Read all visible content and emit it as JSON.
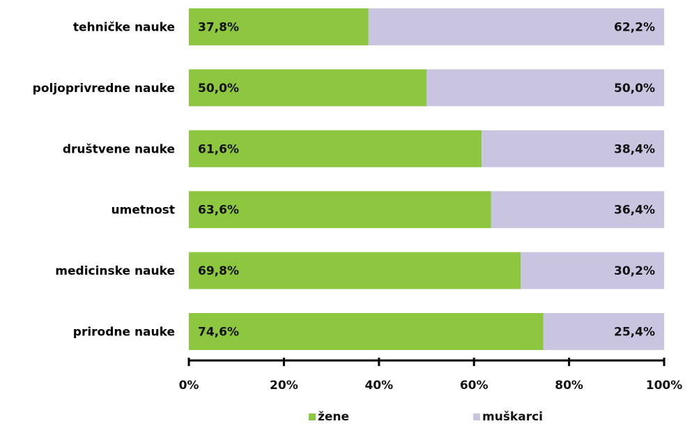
{
  "chart_data": {
    "type": "bar",
    "orientation": "horizontal",
    "stacked": true,
    "percent": true,
    "categories": [
      "tehničke nauke",
      "poljoprivredne nauke",
      "društvene nauke",
      "umetnost",
      "medicinske nauke",
      "prirodne nauke"
    ],
    "series": [
      {
        "name": "žene",
        "color": "#8dc63f",
        "values": [
          37.8,
          50.0,
          61.6,
          63.6,
          69.8,
          74.6
        ],
        "labels": [
          "37,8%",
          "50,0%",
          "61,6%",
          "63,6%",
          "69,8%",
          "74,6%"
        ]
      },
      {
        "name": "muškarci",
        "color": "#c9c5e1",
        "values": [
          62.2,
          50.0,
          38.4,
          36.4,
          30.2,
          25.4
        ],
        "labels": [
          "62,2%",
          "50,0%",
          "38,4%",
          "36,4%",
          "30,2%",
          "25,4%"
        ]
      }
    ],
    "xlim": [
      0,
      100
    ],
    "x_ticks": [
      0,
      20,
      40,
      60,
      80,
      100
    ],
    "x_tick_labels": [
      "0%",
      "20%",
      "40%",
      "60%",
      "80%",
      "100%"
    ],
    "grid": false,
    "legend_position": "bottom"
  }
}
